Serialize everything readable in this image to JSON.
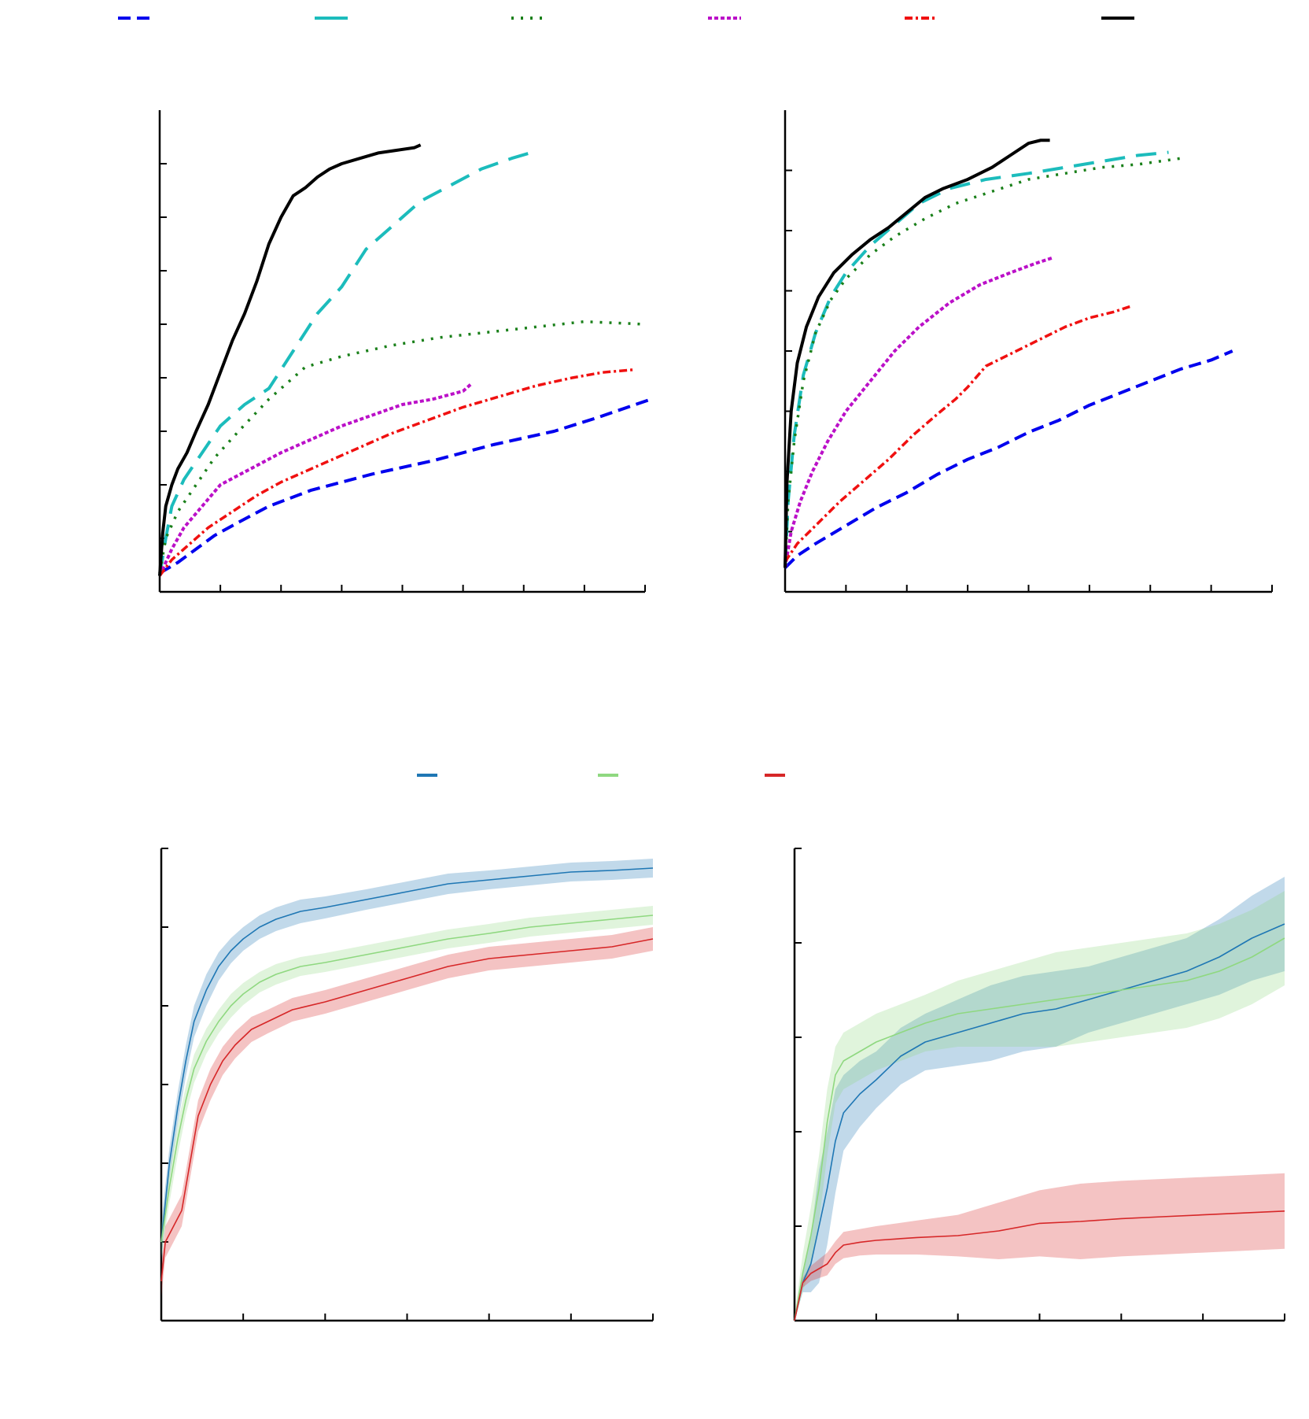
{
  "colors": {
    "blue_dashed": "#0000ee",
    "cyan_dashed": "#1cbcbc",
    "green_dotted": "#1a801a",
    "magenta_dotted": "#bb10c8",
    "red_dashdot": "#f01010",
    "black_solid": "#000000",
    "line_blue": "#1f77b4",
    "line_green": "#8fd880",
    "line_red": "#d62728"
  },
  "legends": {
    "top": [
      {
        "color_key": "blue_dashed",
        "dash": "16 8"
      },
      {
        "color_key": "cyan_dashed",
        "dash": ""
      },
      {
        "color_key": "green_dotted",
        "dash": "3 9"
      },
      {
        "color_key": "magenta_dotted",
        "dash": "5 3"
      },
      {
        "color_key": "red_dashdot",
        "dash": "10 4 3 4"
      },
      {
        "color_key": "black_solid",
        "dash": ""
      }
    ],
    "bottom": [
      {
        "color_key": "line_blue"
      },
      {
        "color_key": "line_green"
      },
      {
        "color_key": "line_red"
      }
    ]
  },
  "chart_data": [
    {
      "type": "line",
      "panel": "top-left",
      "grid": false,
      "legend_position": "top",
      "xlim": [
        0,
        8
      ],
      "ylim": [
        0,
        9
      ],
      "x_ticks": [
        0,
        1,
        2,
        3,
        4,
        5,
        6,
        7,
        8
      ],
      "y_ticks": [
        0,
        1,
        2,
        3,
        4,
        5,
        6,
        7,
        8
      ],
      "series": [
        {
          "style": "blue_dashed",
          "x": [
            0,
            0.3,
            0.6,
            0.9,
            1.3,
            1.8,
            2.5,
            3.5,
            4.5,
            5.5,
            6.5,
            7.2,
            8.1
          ],
          "y": [
            0.35,
            0.55,
            0.8,
            1.05,
            1.3,
            1.6,
            1.9,
            2.2,
            2.45,
            2.75,
            3.0,
            3.25,
            3.6
          ]
        },
        {
          "style": "cyan_dashed",
          "x": [
            0,
            0.1,
            0.2,
            0.4,
            0.7,
            1.0,
            1.4,
            1.8,
            2.2,
            2.6,
            3.0,
            3.4,
            3.9,
            4.3,
            4.8,
            5.3,
            5.8,
            6.1
          ],
          "y": [
            0.3,
            1.0,
            1.6,
            2.1,
            2.6,
            3.1,
            3.5,
            3.8,
            4.5,
            5.2,
            5.7,
            6.4,
            6.9,
            7.3,
            7.6,
            7.9,
            8.1,
            8.2
          ]
        },
        {
          "style": "green_dotted",
          "x": [
            0,
            0.1,
            0.3,
            0.6,
            0.9,
            1.3,
            1.8,
            2.4,
            3.0,
            3.8,
            4.6,
            5.4,
            6.2,
            7.0,
            8.0
          ],
          "y": [
            0.35,
            1.0,
            1.5,
            2.0,
            2.5,
            3.0,
            3.6,
            4.2,
            4.4,
            4.6,
            4.75,
            4.85,
            4.95,
            5.05,
            5.0
          ]
        },
        {
          "style": "magenta_dotted",
          "x": [
            0,
            0.2,
            0.4,
            0.7,
            1.0,
            1.5,
            2.0,
            2.5,
            3.0,
            3.5,
            4.0,
            4.5,
            5.0,
            5.15
          ],
          "y": [
            0.3,
            0.8,
            1.2,
            1.6,
            2.0,
            2.3,
            2.6,
            2.85,
            3.1,
            3.3,
            3.5,
            3.6,
            3.75,
            3.9
          ]
        },
        {
          "style": "red_dashdot",
          "x": [
            0,
            0.2,
            0.5,
            0.8,
            1.2,
            1.6,
            2.0,
            2.6,
            3.2,
            3.8,
            4.4,
            5.0,
            5.6,
            6.2,
            6.8,
            7.3,
            7.8
          ],
          "y": [
            0.3,
            0.6,
            0.9,
            1.2,
            1.5,
            1.8,
            2.05,
            2.35,
            2.65,
            2.95,
            3.2,
            3.45,
            3.65,
            3.85,
            4.0,
            4.1,
            4.15
          ]
        },
        {
          "style": "black_solid",
          "x": [
            0,
            0.05,
            0.1,
            0.2,
            0.3,
            0.45,
            0.6,
            0.8,
            1.0,
            1.2,
            1.4,
            1.6,
            1.8,
            2.0,
            2.2,
            2.4,
            2.6,
            2.8,
            3.0,
            3.3,
            3.6,
            3.9,
            4.2,
            4.3
          ],
          "y": [
            0.3,
            1.1,
            1.6,
            2.0,
            2.3,
            2.6,
            3.0,
            3.5,
            4.1,
            4.7,
            5.2,
            5.8,
            6.5,
            7.0,
            7.4,
            7.55,
            7.75,
            7.9,
            8.0,
            8.1,
            8.2,
            8.25,
            8.3,
            8.35
          ]
        }
      ]
    },
    {
      "type": "line",
      "panel": "top-right",
      "grid": false,
      "xlim": [
        0,
        8
      ],
      "ylim": [
        0,
        8
      ],
      "x_ticks": [
        0,
        1,
        2,
        3,
        4,
        5,
        6,
        7,
        8
      ],
      "y_ticks": [
        0,
        1,
        2,
        3,
        4,
        5,
        6,
        7
      ],
      "series": [
        {
          "style": "blue_dashed",
          "x": [
            0,
            0.2,
            0.5,
            1.0,
            1.5,
            2.0,
            2.5,
            3.0,
            3.5,
            4.0,
            4.5,
            5.0,
            5.5,
            6.0,
            6.5,
            7.0,
            7.35
          ],
          "y": [
            0.4,
            0.6,
            0.8,
            1.1,
            1.4,
            1.65,
            1.95,
            2.2,
            2.4,
            2.65,
            2.85,
            3.1,
            3.3,
            3.5,
            3.7,
            3.85,
            4.0
          ]
        },
        {
          "style": "cyan_dashed",
          "x": [
            0,
            0.05,
            0.15,
            0.3,
            0.5,
            0.75,
            1.0,
            1.4,
            1.8,
            2.2,
            2.7,
            3.3,
            4.0,
            4.6,
            5.2,
            5.8,
            6.3
          ],
          "y": [
            0.4,
            1.5,
            2.6,
            3.6,
            4.3,
            4.9,
            5.3,
            5.75,
            6.1,
            6.45,
            6.7,
            6.85,
            6.95,
            7.05,
            7.15,
            7.25,
            7.3
          ]
        },
        {
          "style": "green_dotted",
          "x": [
            0,
            0.05,
            0.15,
            0.3,
            0.5,
            0.75,
            1.0,
            1.4,
            1.8,
            2.3,
            2.8,
            3.4,
            4.0,
            4.6,
            5.2,
            5.8,
            6.5
          ],
          "y": [
            0.4,
            1.5,
            2.5,
            3.5,
            4.3,
            4.85,
            5.2,
            5.6,
            5.9,
            6.2,
            6.45,
            6.65,
            6.85,
            6.95,
            7.05,
            7.1,
            7.2
          ]
        },
        {
          "style": "magenta_dotted",
          "x": [
            0,
            0.1,
            0.25,
            0.45,
            0.7,
            1.0,
            1.4,
            1.8,
            2.2,
            2.7,
            3.2,
            3.7,
            4.1,
            4.4
          ],
          "y": [
            0.4,
            1.0,
            1.5,
            2.0,
            2.5,
            3.0,
            3.5,
            4.0,
            4.4,
            4.8,
            5.1,
            5.3,
            5.45,
            5.55
          ]
        },
        {
          "style": "red_dashdot",
          "x": [
            0,
            0.2,
            0.5,
            0.9,
            1.3,
            1.7,
            2.1,
            2.5,
            2.8,
            3.0,
            3.3,
            3.7,
            4.2,
            4.6,
            5.0,
            5.4,
            5.7
          ],
          "y": [
            0.5,
            0.8,
            1.1,
            1.5,
            1.85,
            2.2,
            2.6,
            2.95,
            3.2,
            3.4,
            3.75,
            3.95,
            4.2,
            4.4,
            4.55,
            4.65,
            4.75
          ]
        },
        {
          "style": "black_solid",
          "x": [
            0,
            0.03,
            0.1,
            0.2,
            0.35,
            0.55,
            0.8,
            1.1,
            1.4,
            1.7,
            2.0,
            2.3,
            2.6,
            3.0,
            3.4,
            3.7,
            4.0,
            4.2,
            4.35
          ],
          "y": [
            0.4,
            1.8,
            3.0,
            3.8,
            4.4,
            4.9,
            5.3,
            5.6,
            5.85,
            6.05,
            6.3,
            6.55,
            6.7,
            6.85,
            7.05,
            7.25,
            7.45,
            7.5,
            7.5
          ]
        }
      ]
    },
    {
      "type": "line",
      "panel": "bottom-left",
      "grid": false,
      "legend_position": "top",
      "shaded_band": true,
      "xlim": [
        0,
        6
      ],
      "ylim": [
        0,
        6
      ],
      "x_ticks": [
        0,
        1,
        2,
        3,
        4,
        5,
        6
      ],
      "y_ticks": [
        0,
        1,
        2,
        3,
        4,
        5,
        6
      ],
      "series": [
        {
          "style": "line_blue",
          "x": [
            0,
            0.1,
            0.2,
            0.3,
            0.4,
            0.55,
            0.7,
            0.85,
            1.0,
            1.2,
            1.4,
            1.7,
            2.0,
            2.5,
            3.0,
            3.5,
            4.0,
            4.5,
            5.0,
            5.5,
            6.0
          ],
          "y": [
            1.0,
            2.0,
            2.7,
            3.3,
            3.8,
            4.2,
            4.5,
            4.7,
            4.85,
            5.0,
            5.1,
            5.2,
            5.25,
            5.35,
            5.45,
            5.55,
            5.6,
            5.65,
            5.7,
            5.72,
            5.75
          ],
          "band": [
            0.25,
            0.2,
            0.2,
            0.2,
            0.2,
            0.2,
            0.18,
            0.16,
            0.15,
            0.15,
            0.15,
            0.15,
            0.14,
            0.13,
            0.13,
            0.13,
            0.12,
            0.12,
            0.12,
            0.12,
            0.12
          ]
        },
        {
          "style": "line_green",
          "x": [
            0,
            0.1,
            0.2,
            0.3,
            0.4,
            0.55,
            0.7,
            0.85,
            1.0,
            1.2,
            1.4,
            1.7,
            2.0,
            2.5,
            3.0,
            3.5,
            4.0,
            4.5,
            5.0,
            5.5,
            6.0
          ],
          "y": [
            1.0,
            1.7,
            2.3,
            2.8,
            3.2,
            3.55,
            3.8,
            4.0,
            4.15,
            4.3,
            4.4,
            4.5,
            4.55,
            4.65,
            4.75,
            4.85,
            4.92,
            5.0,
            5.05,
            5.1,
            5.15
          ],
          "band": [
            0.2,
            0.2,
            0.2,
            0.18,
            0.18,
            0.16,
            0.15,
            0.15,
            0.14,
            0.13,
            0.13,
            0.12,
            0.12,
            0.12,
            0.12,
            0.12,
            0.12,
            0.12,
            0.12,
            0.12,
            0.12
          ]
        },
        {
          "style": "line_red",
          "x": [
            0,
            0.05,
            0.15,
            0.25,
            0.35,
            0.45,
            0.6,
            0.75,
            0.9,
            1.1,
            1.3,
            1.6,
            2.0,
            2.5,
            3.0,
            3.5,
            4.0,
            4.5,
            5.0,
            5.5,
            6.0
          ],
          "y": [
            0.5,
            1.0,
            1.2,
            1.4,
            2.0,
            2.6,
            3.0,
            3.3,
            3.5,
            3.7,
            3.8,
            3.95,
            4.05,
            4.2,
            4.35,
            4.5,
            4.6,
            4.65,
            4.7,
            4.75,
            4.85
          ],
          "band": [
            0.2,
            0.2,
            0.2,
            0.2,
            0.2,
            0.2,
            0.2,
            0.18,
            0.17,
            0.16,
            0.15,
            0.15,
            0.15,
            0.15,
            0.15,
            0.15,
            0.15,
            0.15,
            0.15,
            0.15,
            0.15
          ]
        }
      ]
    },
    {
      "type": "line",
      "panel": "bottom-right",
      "grid": false,
      "shaded_band": true,
      "xlim": [
        0,
        6
      ],
      "ylim": [
        0,
        5
      ],
      "x_ticks": [
        0,
        1,
        2,
        3,
        4,
        5,
        6
      ],
      "y_ticks": [
        0,
        1,
        2,
        3,
        4,
        5
      ],
      "series": [
        {
          "style": "line_blue",
          "x": [
            0,
            0.1,
            0.2,
            0.3,
            0.4,
            0.5,
            0.6,
            0.8,
            1.0,
            1.3,
            1.6,
            2.0,
            2.4,
            2.8,
            3.2,
            3.6,
            4.0,
            4.4,
            4.8,
            5.2,
            5.6,
            6.0
          ],
          "y": [
            0,
            0.4,
            0.6,
            1.0,
            1.4,
            1.9,
            2.2,
            2.4,
            2.55,
            2.8,
            2.95,
            3.05,
            3.15,
            3.25,
            3.3,
            3.4,
            3.5,
            3.6,
            3.7,
            3.85,
            4.05,
            4.2
          ],
          "band": [
            0.05,
            0.1,
            0.3,
            0.6,
            0.6,
            0.55,
            0.4,
            0.35,
            0.3,
            0.3,
            0.3,
            0.35,
            0.4,
            0.4,
            0.4,
            0.35,
            0.35,
            0.35,
            0.35,
            0.4,
            0.45,
            0.5
          ]
        },
        {
          "style": "line_green",
          "x": [
            0,
            0.1,
            0.2,
            0.3,
            0.4,
            0.5,
            0.6,
            0.8,
            1.0,
            1.3,
            1.6,
            2.0,
            2.4,
            2.8,
            3.2,
            3.6,
            4.0,
            4.4,
            4.8,
            5.2,
            5.6,
            6.0
          ],
          "y": [
            0,
            0.5,
            0.9,
            1.4,
            2.1,
            2.6,
            2.75,
            2.85,
            2.95,
            3.05,
            3.15,
            3.25,
            3.3,
            3.35,
            3.4,
            3.45,
            3.5,
            3.55,
            3.6,
            3.7,
            3.85,
            4.05
          ],
          "band": [
            0.05,
            0.2,
            0.3,
            0.35,
            0.35,
            0.3,
            0.3,
            0.3,
            0.3,
            0.3,
            0.3,
            0.35,
            0.4,
            0.45,
            0.5,
            0.5,
            0.5,
            0.5,
            0.5,
            0.5,
            0.5,
            0.5
          ]
        },
        {
          "style": "line_red",
          "x": [
            0,
            0.1,
            0.2,
            0.3,
            0.4,
            0.5,
            0.6,
            0.8,
            1.0,
            1.5,
            2.0,
            2.5,
            3.0,
            3.5,
            4.0,
            4.5,
            5.0,
            5.5,
            6.0
          ],
          "y": [
            0,
            0.4,
            0.5,
            0.55,
            0.6,
            0.72,
            0.8,
            0.83,
            0.85,
            0.88,
            0.9,
            0.95,
            1.03,
            1.05,
            1.08,
            1.1,
            1.12,
            1.14,
            1.16
          ],
          "band": [
            0.02,
            0.05,
            0.08,
            0.1,
            0.12,
            0.12,
            0.14,
            0.14,
            0.15,
            0.18,
            0.22,
            0.3,
            0.35,
            0.4,
            0.4,
            0.4,
            0.4,
            0.4,
            0.4
          ]
        }
      ]
    }
  ]
}
